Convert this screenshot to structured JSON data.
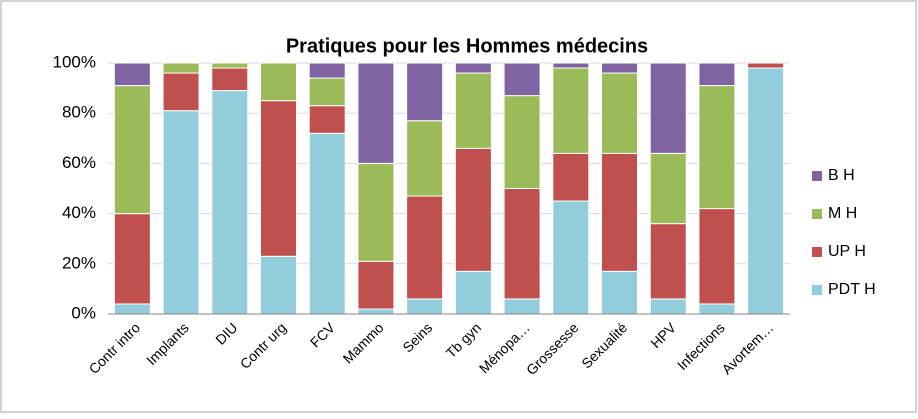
{
  "chart_data": {
    "type": "stacked_bar_percent",
    "title": "Pratiques  pour les  Hommes médecins",
    "categories": [
      "Contr intro",
      "Implants",
      "DIU",
      "Contr urg",
      "FCV",
      "Mammo",
      "Seins",
      "Tb gyn",
      "Ménopa…",
      "Grossesse",
      "Sexualité",
      "HPV",
      "Infections",
      "Avortem…"
    ],
    "series": [
      {
        "name": "PDT H",
        "color": "#92cddc",
        "values": [
          4,
          81,
          89,
          23,
          72,
          2,
          6,
          17,
          6,
          45,
          17,
          6,
          4,
          98
        ]
      },
      {
        "name": "UP H",
        "color": "#c0504d",
        "values": [
          36,
          15,
          9,
          62,
          11,
          19,
          41,
          49,
          44,
          19,
          47,
          30,
          38,
          2
        ]
      },
      {
        "name": "M H",
        "color": "#9bbb59",
        "values": [
          51,
          4,
          2,
          15,
          11,
          39,
          30,
          30,
          37,
          34,
          32,
          28,
          49,
          0
        ]
      },
      {
        "name": "B H",
        "color": "#8064a2",
        "values": [
          9,
          0,
          0,
          0,
          6,
          40,
          23,
          4,
          13,
          2,
          4,
          36,
          9,
          0
        ]
      }
    ],
    "ylim": [
      0,
      100
    ],
    "yticks": [
      {
        "value": 0,
        "label": "0%"
      },
      {
        "value": 20,
        "label": "20%"
      },
      {
        "value": 40,
        "label": "40%"
      },
      {
        "value": 60,
        "label": "60%"
      },
      {
        "value": 80,
        "label": "80%"
      },
      {
        "value": 100,
        "label": "100%"
      }
    ],
    "grid": true,
    "legend": "right"
  }
}
